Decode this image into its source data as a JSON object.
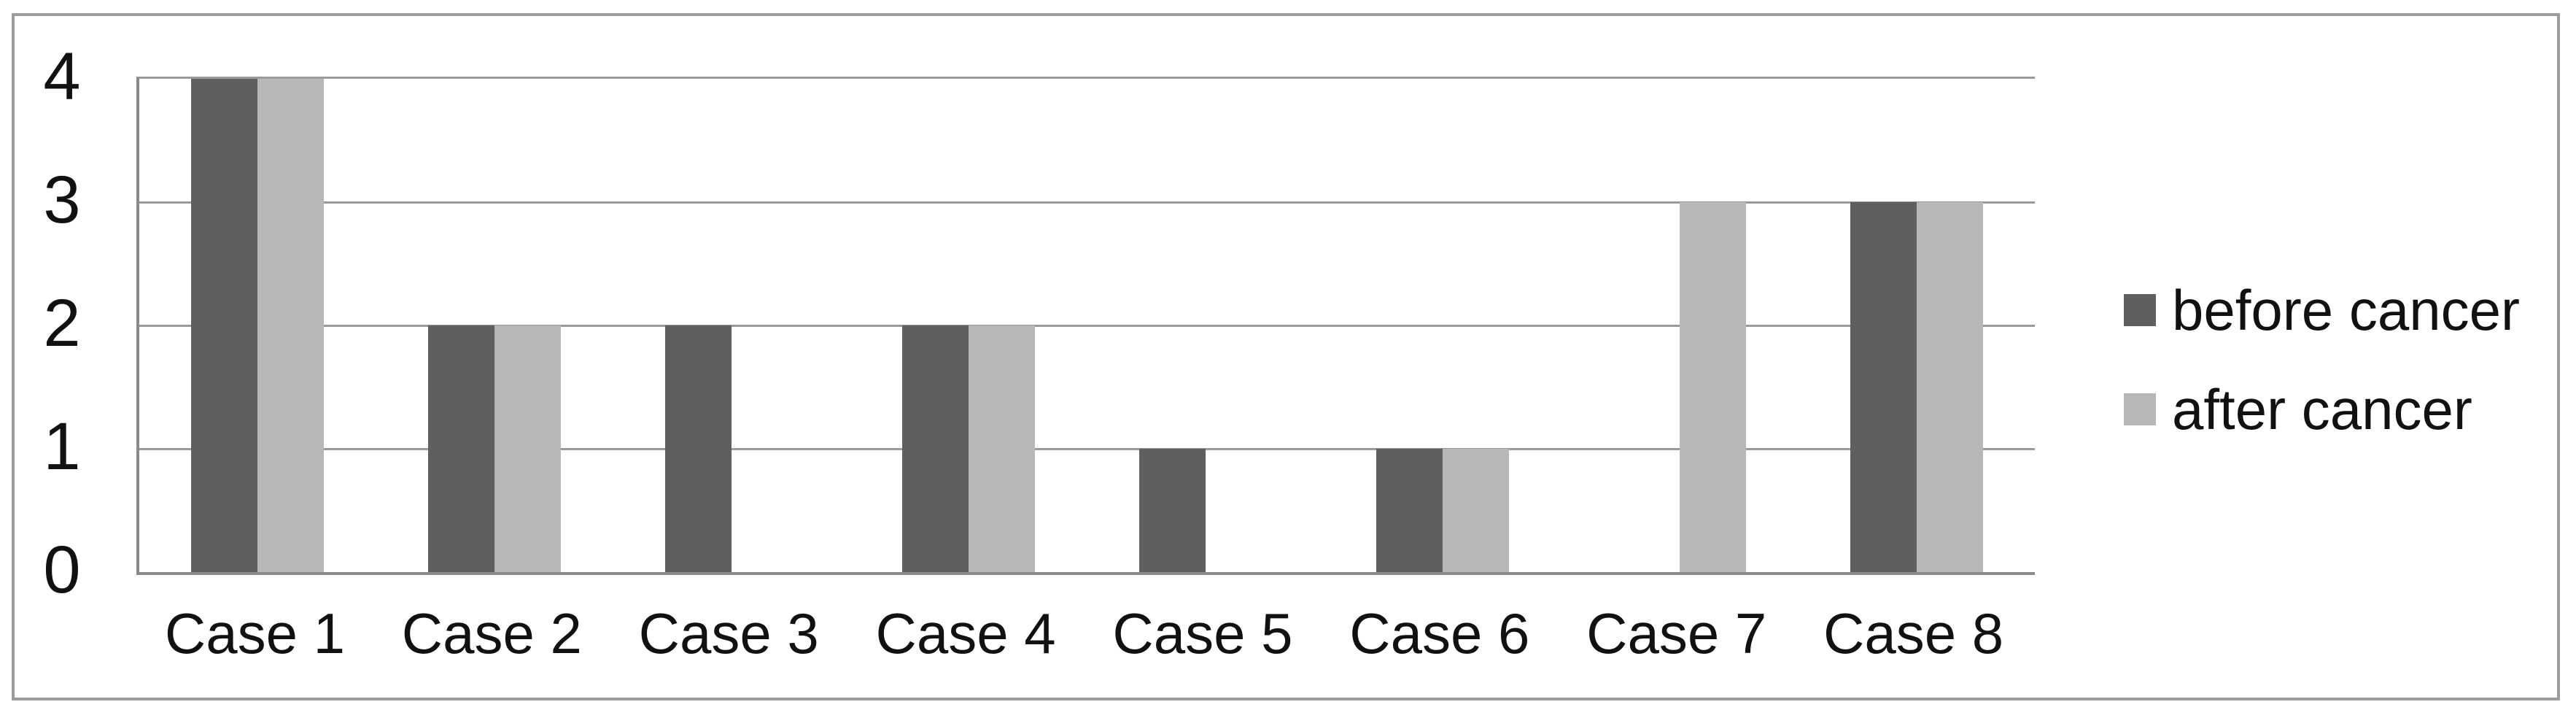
{
  "chart_data": {
    "type": "bar",
    "title": "",
    "categories": [
      "Case 1",
      "Case 2",
      "Case 3",
      "Case 4",
      "Case 5",
      "Case 6",
      "Case 7",
      "Case 8"
    ],
    "series": [
      {
        "name": "before cancer",
        "color": "#5f5f5f",
        "values": [
          4,
          2,
          2,
          2,
          1,
          1,
          0,
          3
        ]
      },
      {
        "name": "after cancer",
        "color": "#b7b7b7",
        "values": [
          4,
          2,
          0,
          2,
          0,
          1,
          3,
          3
        ]
      }
    ],
    "xlabel": "",
    "ylabel": "",
    "ylim": [
      0,
      4
    ],
    "yticks": [
      0,
      1,
      2,
      3,
      4
    ],
    "grid": true,
    "legend_position": "right"
  },
  "colors": {
    "gridline": "#9a9a9a",
    "axis": "#8a8a8a",
    "frame_border": "#9c9c9c",
    "background": "#ffffff",
    "text": "#111111"
  }
}
